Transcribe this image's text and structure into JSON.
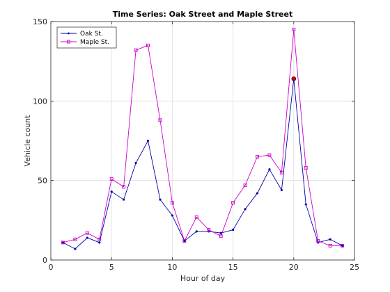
{
  "chart_data": {
    "type": "line",
    "title": "Time Series: Oak Street and Maple Street",
    "xlabel": "Hour of day",
    "ylabel": "Vehicle count",
    "xlim": [
      0,
      25
    ],
    "ylim": [
      0,
      150
    ],
    "xticks": [
      0,
      5,
      10,
      15,
      20,
      25
    ],
    "yticks": [
      0,
      50,
      100,
      150
    ],
    "grid": true,
    "legend_position": "top-left",
    "x": [
      1,
      2,
      3,
      4,
      5,
      6,
      7,
      8,
      9,
      10,
      11,
      12,
      13,
      14,
      15,
      16,
      17,
      18,
      19,
      20,
      21,
      22,
      23,
      24
    ],
    "series": [
      {
        "name": "Oak St.",
        "color": "#0000aa",
        "marker": "dot",
        "values": [
          11,
          7,
          14,
          11,
          43,
          38,
          61,
          75,
          38,
          28,
          12,
          18,
          18,
          17,
          19,
          32,
          42,
          57,
          44,
          114,
          35,
          11,
          13,
          9
        ]
      },
      {
        "name": "Maple St.",
        "color": "#cc00cc",
        "marker": "square",
        "values": [
          11,
          13,
          17,
          13,
          51,
          46,
          132,
          135,
          88,
          36,
          12,
          27,
          19,
          15,
          36,
          47,
          65,
          66,
          55,
          145,
          58,
          12,
          9,
          9
        ]
      }
    ],
    "highlight": {
      "x": 20,
      "y": 114,
      "color": "#cc0000"
    }
  }
}
